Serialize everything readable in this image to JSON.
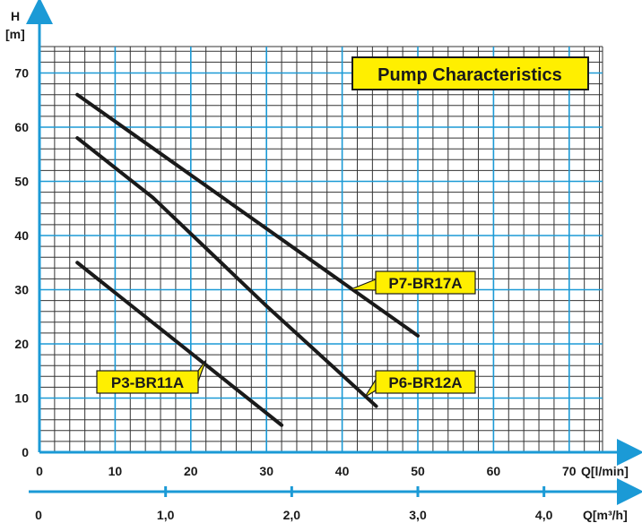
{
  "chart_data": {
    "type": "line",
    "title": "Pump Characteristics",
    "ylabel_line1": "H",
    "ylabel_line2": "[m]",
    "xlabel": "Q[l/min]",
    "x2label": "Q[m³/h]",
    "xlim": [
      0,
      75
    ],
    "ylim": [
      0,
      75
    ],
    "x_ticks": [
      "0",
      "10",
      "20",
      "30",
      "40",
      "50",
      "60",
      "70"
    ],
    "y_ticks": [
      "0",
      "10",
      "20",
      "30",
      "40",
      "50",
      "60",
      "70"
    ],
    "x2_ticks": [
      "0",
      "1,0",
      "2,0",
      "3,0",
      "4,0"
    ],
    "grid": true,
    "series": [
      {
        "name": "P7-BR17A",
        "x": [
          5,
          50
        ],
        "y": [
          66,
          21.5
        ]
      },
      {
        "name": "P6-BR12A",
        "x": [
          5,
          15,
          30,
          44.5
        ],
        "y": [
          58,
          47,
          27,
          8.5
        ]
      },
      {
        "name": "P3-BR11A",
        "x": [
          5,
          32
        ],
        "y": [
          35,
          5
        ]
      }
    ],
    "colors": {
      "axis": "#1b9ad6",
      "grid_major": "#1b9ad6",
      "grid_minor": "#333333",
      "callout_fill": "#ffef00",
      "line": "#1a1a1a"
    }
  }
}
